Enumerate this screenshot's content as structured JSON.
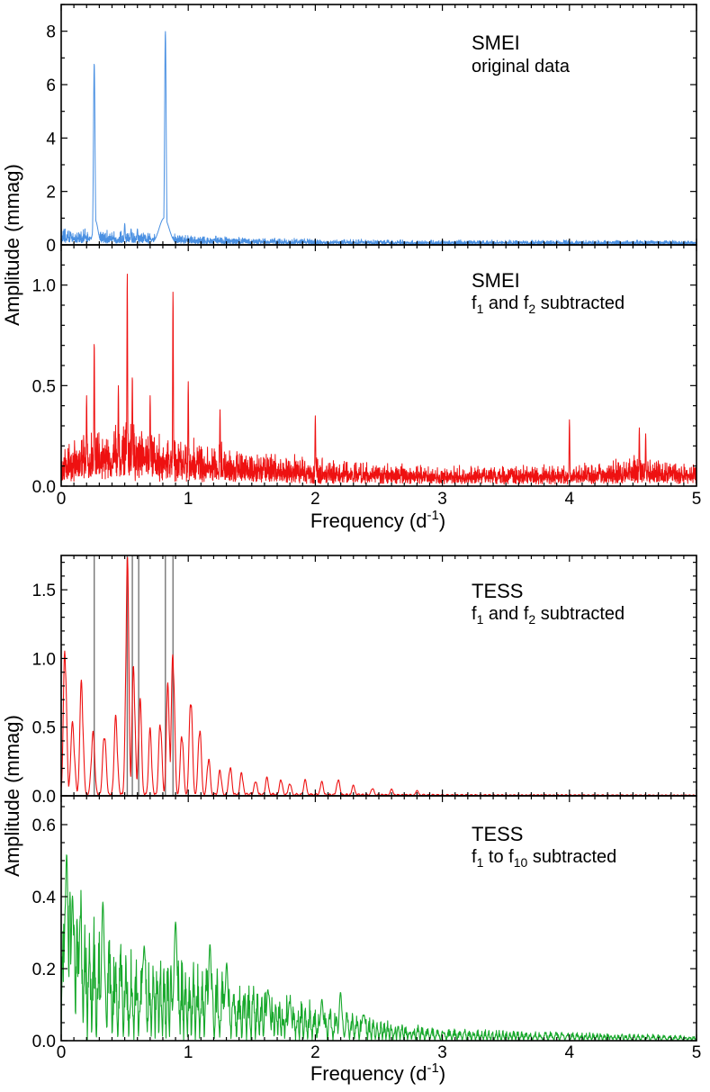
{
  "colors": {
    "smei": "#4a90e2",
    "red": "#ee1111",
    "green": "#17a82b",
    "marker": "#777777",
    "axis": "#000000"
  },
  "figure": {
    "top_group": {
      "xlabel_main": "Frequency (d",
      "xlabel_sup": "-1",
      "xlabel_close": ")",
      "ylabel": "Amplitude (mmag)"
    },
    "bottom_group": {
      "xlabel_main": "Frequency (d",
      "xlabel_sup": "-1",
      "xlabel_close": ")",
      "ylabel": "Amplitude (mmag)"
    }
  },
  "panels": [
    {
      "id": "p1",
      "line1": "SMEI",
      "line2_parts": [
        "original data"
      ]
    },
    {
      "id": "p2",
      "line1": "SMEI",
      "line2_parts": [
        "f",
        "1",
        " and f",
        "2",
        " subtracted"
      ]
    },
    {
      "id": "p3",
      "line1": "TESS",
      "line2_parts": [
        "f",
        "1",
        " and f",
        "2",
        " subtracted"
      ]
    },
    {
      "id": "p4",
      "line1": "TESS",
      "line2_parts": [
        "f",
        "1",
        " to f",
        "10",
        " subtracted"
      ]
    }
  ],
  "chart_data": [
    {
      "type": "line",
      "id": "p1",
      "series": [
        {
          "name": "SMEI original data",
          "color": "#4a90e2"
        }
      ],
      "xlim": [
        0,
        5
      ],
      "ylim": [
        0,
        9
      ],
      "x_ticks": [
        0,
        1,
        2,
        3,
        4,
        5
      ],
      "y_ticks": [
        0,
        2,
        4,
        6,
        8
      ],
      "y_tick_labels": [
        "0",
        "2",
        "4",
        "6",
        "8"
      ],
      "baseline": [
        [
          0,
          0.4
        ],
        [
          0.5,
          0.35
        ],
        [
          1.0,
          0.25
        ],
        [
          1.5,
          0.18
        ],
        [
          2.0,
          0.15
        ],
        [
          3.0,
          0.12
        ],
        [
          4.0,
          0.12
        ],
        [
          5.0,
          0.12
        ]
      ],
      "noise": 0.55,
      "peaks": [
        [
          0.26,
          6.8,
          0.006
        ],
        [
          0.27,
          0.9,
          0.02
        ],
        [
          0.82,
          8.0,
          0.006
        ],
        [
          0.81,
          1.0,
          0.04
        ],
        [
          0.5,
          0.8,
          0.004
        ],
        [
          0.55,
          0.6,
          0.004
        ],
        [
          0.6,
          0.6,
          0.004
        ]
      ]
    },
    {
      "type": "line",
      "id": "p2",
      "series": [
        {
          "name": "SMEI f1 and f2 subtracted",
          "color": "#ee1111"
        }
      ],
      "xlim": [
        0,
        5
      ],
      "ylim": [
        0,
        1.2
      ],
      "x_ticks": [
        0,
        1,
        2,
        3,
        4,
        5
      ],
      "x_tick_labels": [
        "0",
        "1",
        "2",
        "3",
        "4",
        "5"
      ],
      "y_ticks": [
        0,
        0.5,
        1.0
      ],
      "y_tick_labels": [
        "0.0",
        "0.5",
        "1.0"
      ],
      "baseline": [
        [
          0,
          0.1
        ],
        [
          0.15,
          0.16
        ],
        [
          0.3,
          0.18
        ],
        [
          0.6,
          0.17
        ],
        [
          1.0,
          0.14
        ],
        [
          1.5,
          0.1
        ],
        [
          2.0,
          0.08
        ],
        [
          3.0,
          0.06
        ],
        [
          4.0,
          0.06
        ],
        [
          4.5,
          0.09
        ],
        [
          4.65,
          0.09
        ],
        [
          5.0,
          0.06
        ]
      ],
      "noise": 0.8,
      "peaks": [
        [
          0.26,
          0.72,
          0.003
        ],
        [
          0.52,
          1.06,
          0.003
        ],
        [
          0.88,
          0.97,
          0.003
        ],
        [
          1.0,
          0.52,
          0.003
        ],
        [
          0.56,
          0.55,
          0.003
        ],
        [
          0.45,
          0.5,
          0.003
        ],
        [
          0.7,
          0.45,
          0.003
        ],
        [
          2.0,
          0.35,
          0.003
        ],
        [
          4.0,
          0.33,
          0.003
        ],
        [
          1.25,
          0.38,
          0.003
        ],
        [
          0.2,
          0.45,
          0.003
        ],
        [
          4.55,
          0.29,
          0.003
        ],
        [
          4.6,
          0.26,
          0.003
        ]
      ]
    },
    {
      "type": "line",
      "id": "p3",
      "series": [
        {
          "name": "TESS f1 and f2 subtracted",
          "color": "#ee1111"
        }
      ],
      "xlim": [
        0,
        5
      ],
      "ylim": [
        0,
        1.75
      ],
      "x_ticks": [
        0,
        1,
        2,
        3,
        4,
        5
      ],
      "y_ticks": [
        0,
        0.5,
        1.0,
        1.5
      ],
      "y_tick_labels": [
        "0.0",
        "0.5",
        "1.0",
        "1.5"
      ],
      "marker_lines": [
        0.26,
        0.52,
        0.56,
        0.61,
        0.82,
        0.88
      ],
      "peaks": [
        [
          0.03,
          1.18,
          0.012
        ],
        [
          0.09,
          0.55,
          0.015
        ],
        [
          0.16,
          0.87,
          0.013
        ],
        [
          0.25,
          0.48,
          0.014
        ],
        [
          0.34,
          0.5,
          0.013
        ],
        [
          0.43,
          0.6,
          0.013
        ],
        [
          0.52,
          1.8,
          0.012
        ],
        [
          0.57,
          1.0,
          0.012
        ],
        [
          0.62,
          0.75,
          0.012
        ],
        [
          0.7,
          0.5,
          0.012
        ],
        [
          0.78,
          0.6,
          0.012
        ],
        [
          0.84,
          0.85,
          0.012
        ],
        [
          0.88,
          1.15,
          0.012
        ],
        [
          0.95,
          0.5,
          0.012
        ],
        [
          1.02,
          0.8,
          0.012
        ],
        [
          1.09,
          0.55,
          0.012
        ],
        [
          1.16,
          0.3,
          0.012
        ],
        [
          1.25,
          0.2,
          0.012
        ],
        [
          1.33,
          0.23,
          0.012
        ],
        [
          1.42,
          0.18,
          0.012
        ],
        [
          1.53,
          0.12,
          0.012
        ],
        [
          1.62,
          0.14,
          0.012
        ],
        [
          1.73,
          0.13,
          0.012
        ],
        [
          1.8,
          0.1,
          0.012
        ],
        [
          1.92,
          0.12,
          0.012
        ],
        [
          2.05,
          0.11,
          0.012
        ],
        [
          2.18,
          0.13,
          0.012
        ],
        [
          2.3,
          0.08,
          0.012
        ],
        [
          2.45,
          0.06,
          0.012
        ],
        [
          2.6,
          0.05,
          0.012
        ],
        [
          2.8,
          0.04,
          0.012
        ]
      ],
      "floor": [
        [
          0,
          0.03
        ],
        [
          1.5,
          0.03
        ],
        [
          3.0,
          0.015
        ],
        [
          5.0,
          0.01
        ]
      ],
      "ripple_period": 0.034,
      "noise": 0.35
    },
    {
      "type": "line",
      "id": "p4",
      "series": [
        {
          "name": "TESS f1 to f10 subtracted",
          "color": "#17a82b"
        }
      ],
      "xlim": [
        0,
        5
      ],
      "ylim": [
        0,
        0.68
      ],
      "x_ticks": [
        0,
        1,
        2,
        3,
        4,
        5
      ],
      "x_tick_labels": [
        "0",
        "1",
        "2",
        "3",
        "4",
        "5"
      ],
      "y_ticks": [
        0,
        0.2,
        0.4,
        0.6
      ],
      "y_tick_labels": [
        "0.0",
        "0.2",
        "0.4",
        "0.6"
      ],
      "envelope": [
        [
          0,
          0.35
        ],
        [
          0.05,
          0.5
        ],
        [
          0.3,
          0.33
        ],
        [
          0.6,
          0.25
        ],
        [
          1.0,
          0.24
        ],
        [
          1.5,
          0.16
        ],
        [
          2.0,
          0.11
        ],
        [
          2.5,
          0.06
        ],
        [
          3.0,
          0.035
        ],
        [
          4.0,
          0.025
        ],
        [
          5.0,
          0.015
        ]
      ],
      "peaks": [
        [
          0.04,
          0.57,
          0.013
        ],
        [
          0.09,
          0.41,
          0.012
        ],
        [
          0.15,
          0.35,
          0.012
        ],
        [
          0.33,
          0.4,
          0.013
        ],
        [
          0.65,
          0.3,
          0.013
        ],
        [
          0.9,
          0.33,
          0.015
        ],
        [
          1.17,
          0.27,
          0.013
        ],
        [
          1.3,
          0.23,
          0.013
        ],
        [
          1.63,
          0.17,
          0.012
        ],
        [
          1.8,
          0.13,
          0.012
        ],
        [
          2.05,
          0.12,
          0.012
        ],
        [
          2.2,
          0.14,
          0.012
        ],
        [
          2.38,
          0.09,
          0.012
        ]
      ],
      "ripple_period": 0.034
    }
  ]
}
